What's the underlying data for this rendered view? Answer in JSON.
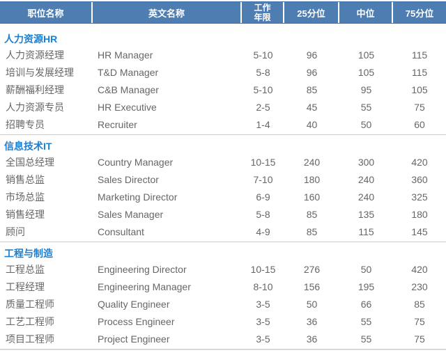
{
  "table": {
    "header": {
      "col_position": "职位名称",
      "col_english": "英文名称",
      "col_years": "工作年限",
      "col_p25": "25分位",
      "col_median": "中位",
      "col_p75": "75分位"
    },
    "sections": [
      {
        "title": "人力资源HR",
        "rows": [
          {
            "cn": "人力资源经理",
            "en": "HR Manager",
            "years": "5-10",
            "p25": "96",
            "mid": "105",
            "p75": "115"
          },
          {
            "cn": "培训与发展经理",
            "en": "T&D Manager",
            "years": "5-8",
            "p25": "96",
            "mid": "105",
            "p75": "115"
          },
          {
            "cn": "薪酬福利经理",
            "en": "C&B Manager",
            "years": "5-10",
            "p25": "85",
            "mid": "95",
            "p75": "105"
          },
          {
            "cn": "人力资源专员",
            "en": "HR Executive",
            "years": "2-5",
            "p25": "45",
            "mid": "55",
            "p75": "75"
          },
          {
            "cn": "招聘专员",
            "en": "Recruiter",
            "years": "1-4",
            "p25": "40",
            "mid": "50",
            "p75": "60"
          }
        ]
      },
      {
        "title": "信息技术IT",
        "rows": [
          {
            "cn": "全国总经理",
            "en": "Country Manager",
            "years": "10-15",
            "p25": "240",
            "mid": "300",
            "p75": "420"
          },
          {
            "cn": "销售总监",
            "en": "Sales Director",
            "years": "7-10",
            "p25": "180",
            "mid": "240",
            "p75": "360"
          },
          {
            "cn": "市场总监",
            "en": "Marketing Director",
            "years": "6-9",
            "p25": "160",
            "mid": "240",
            "p75": "325"
          },
          {
            "cn": "销售经理",
            "en": "Sales Manager",
            "years": "5-8",
            "p25": "85",
            "mid": "135",
            "p75": "180"
          },
          {
            "cn": "顾问",
            "en": "Consultant",
            "years": "4-9",
            "p25": "85",
            "mid": "115",
            "p75": "145"
          }
        ]
      },
      {
        "title": "工程与制造",
        "rows": [
          {
            "cn": "工程总监",
            "en": "Engineering Director",
            "years": "10-15",
            "p25": "276",
            "mid": "50",
            "p75": "420"
          },
          {
            "cn": "工程经理",
            "en": "Engineering Manager",
            "years": "8-10",
            "p25": "156",
            "mid": "195",
            "p75": "230"
          },
          {
            "cn": "质量工程师",
            "en": "Quality Engineer",
            "years": "3-5",
            "p25": "50",
            "mid": "66",
            "p75": "85"
          },
          {
            "cn": "工艺工程师",
            "en": "Process Engineer",
            "years": "3-5",
            "p25": "36",
            "mid": "55",
            "p75": "75"
          },
          {
            "cn": "项目工程师",
            "en": "Project Engineer",
            "years": "3-5",
            "p25": "36",
            "mid": "55",
            "p75": "75"
          }
        ]
      }
    ]
  },
  "colors": {
    "header_bg": "#4d7db1",
    "header_border": "#3f70a6",
    "header_text": "#ffffff",
    "section_title": "#1b7fd2",
    "body_text": "#666666",
    "divider": "#cccccc"
  }
}
